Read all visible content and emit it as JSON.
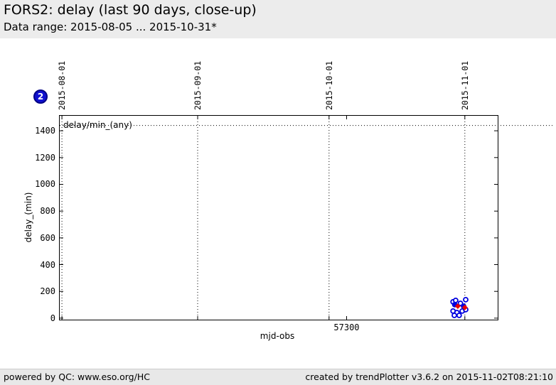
{
  "header": {
    "title": "FORS2: delay (last 90 days, close-up)",
    "subtitle": "Data range: 2015-08-05 ... 2015-10-31*"
  },
  "badge": {
    "label": "2",
    "color": "#1010d0"
  },
  "footer": {
    "left": "powered by QC: www.eso.org/HC",
    "right": "created by trendPlotter v3.6.2 on 2015-11-02T08:21:10"
  },
  "chart_data": {
    "type": "scatter",
    "title": "",
    "xlabel": "mjd-obs",
    "ylabel": "delay_(min)",
    "legend_label": "delay/min_(any)",
    "legend_position": "top-left-inside",
    "x_range": [
      57234.5,
      57334.5
    ],
    "y_range": [
      -11,
      1512
    ],
    "y_ticks": [
      0,
      200,
      400,
      600,
      800,
      1000,
      1200,
      1400
    ],
    "x_ticks": [
      {
        "value": 57300,
        "label": "57300"
      }
    ],
    "date_lines": [
      {
        "mjd": 57235,
        "label": "2015-08-01"
      },
      {
        "mjd": 57266,
        "label": "2015-09-01"
      },
      {
        "mjd": 57296,
        "label": "2015-10-01"
      },
      {
        "mjd": 57327,
        "label": "2015-11-01"
      }
    ],
    "reference_line": {
      "y": 1440,
      "style": "dotted",
      "extends_past_right_border": true
    },
    "grid": "dotted-vertical-at-month-starts",
    "series": [
      {
        "name": "delay-open-circles",
        "marker": "open-circle",
        "color": "#0000e0",
        "points": [
          [
            57324.3,
            122
          ],
          [
            57324.9,
            133
          ],
          [
            57326.0,
            111
          ],
          [
            57327.2,
            138
          ],
          [
            57324.3,
            53
          ],
          [
            57325.2,
            42
          ],
          [
            57326.4,
            53
          ],
          [
            57327.2,
            64
          ],
          [
            57324.6,
            21
          ],
          [
            57325.7,
            21
          ]
        ]
      },
      {
        "name": "delay-filled-circles",
        "marker": "filled-circle",
        "color": "#0000e0",
        "points": [
          [
            57324.7,
            101
          ],
          [
            57326.7,
            90
          ]
        ]
      },
      {
        "name": "delay-red-diamonds",
        "marker": "filled-diamond",
        "color": "#e80000",
        "points": [
          [
            57325.4,
            90
          ],
          [
            57327.0,
            80
          ]
        ]
      }
    ]
  }
}
